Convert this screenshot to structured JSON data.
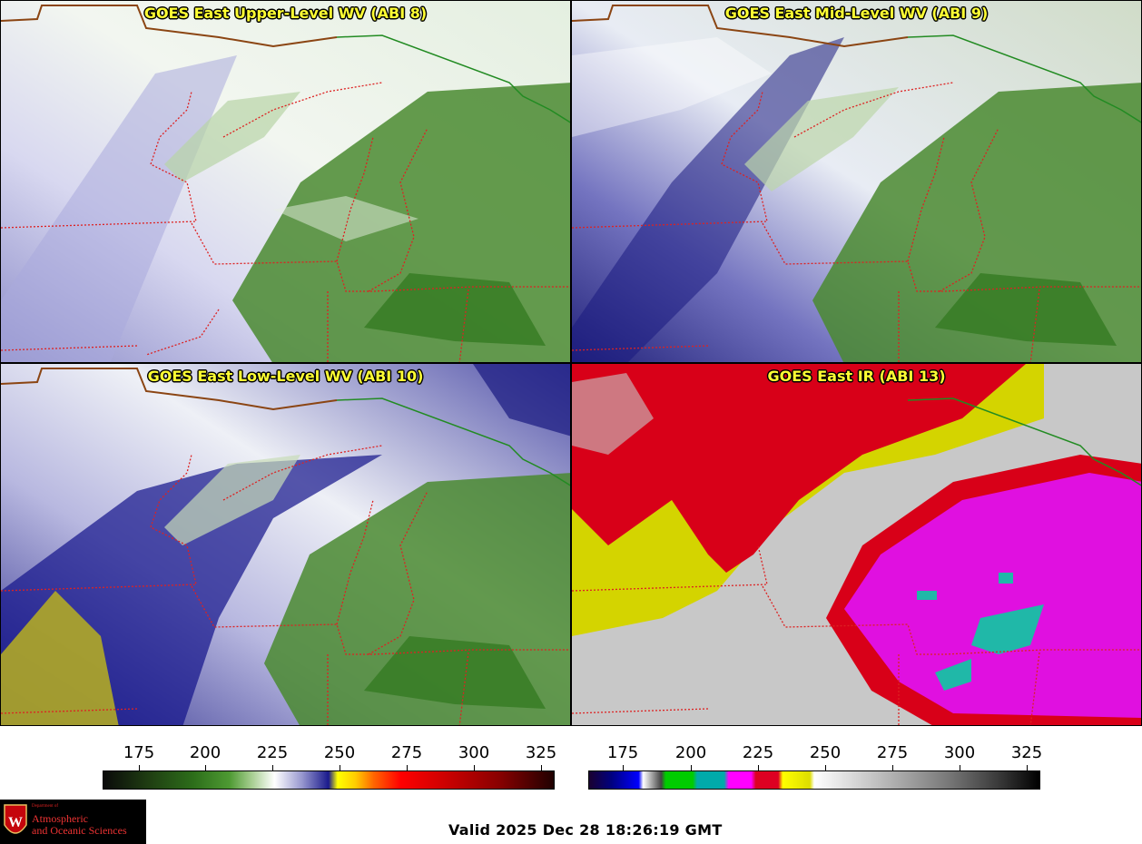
{
  "panels": [
    {
      "title": "GOES East Upper-Level WV (ABI 8)"
    },
    {
      "title": "GOES East Mid-Level WV (ABI 9)"
    },
    {
      "title": "GOES East Low-Level WV (ABI 10)"
    },
    {
      "title": "GOES East IR (ABI 13)"
    }
  ],
  "colorbars": {
    "water_vapor": {
      "ticks": [
        "175",
        "200",
        "225",
        "250",
        "275",
        "300",
        "325"
      ]
    },
    "infrared": {
      "ticks": [
        "175",
        "200",
        "225",
        "250",
        "275",
        "300",
        "325"
      ]
    }
  },
  "valid_time": "Valid 2025 Dec 28 18:26:19 GMT",
  "logo": {
    "line1": "Department of",
    "line2": "Atmospheric",
    "line3": "and Oceanic Sciences",
    "colors": {
      "background": "#000000",
      "text": "#e33333"
    }
  }
}
